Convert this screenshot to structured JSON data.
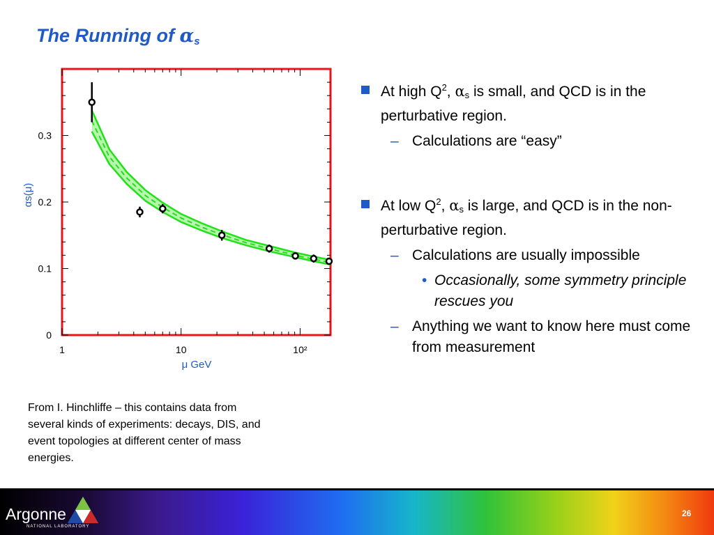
{
  "slide": {
    "title_prefix": "The Running of ",
    "title_symbol": "α",
    "title_subscript": "s",
    "page_number": "26"
  },
  "bullets": {
    "b1": {
      "pre": "At high Q",
      "sup": "2",
      "mid": ", ",
      "sym": "α",
      "sub": "s",
      "post": " is small, and QCD is in the perturbative region."
    },
    "b1_sub1": "Calculations are “easy”",
    "b2": {
      "pre": "At low Q",
      "sup": "2",
      "mid": ", ",
      "sym": "α",
      "sub": "s",
      "post": " is large, and QCD is in the non-perturbative region."
    },
    "b2_sub1": "Calculations are usually impossible",
    "b2_sub1_sub1": "Occasionally, some symmetry principle rescues you",
    "b2_sub2": "Anything we want to know here must come from measurement"
  },
  "caption": {
    "lines": [
      "From I. Hinchliffe – this contains data from",
      "several kinds of experiments: decays, DIS, and",
      "event topologies at different center of mass",
      "energies."
    ]
  },
  "footer": {
    "logo_text": "Argonne",
    "logo_subtext": "NATIONAL LABORATORY"
  },
  "chart_data": {
    "type": "scatter",
    "xlabel": "μ GeV",
    "ylabel": "αs(μ)",
    "xscale": "log",
    "xlim": [
      1,
      180
    ],
    "ylim": [
      0,
      0.4
    ],
    "x_ticks": [
      "1",
      "10",
      "10²"
    ],
    "y_ticks": [
      "0",
      "0.1",
      "0.2",
      "0.3"
    ],
    "frame_color": "#e8151b",
    "band_color": "#22e01a",
    "series": [
      {
        "type": "points_with_errors",
        "points": [
          {
            "x": 1.78,
            "y": 0.35,
            "err": 0.03
          },
          {
            "x": 4.5,
            "y": 0.185,
            "err": 0.008
          },
          {
            "x": 7.0,
            "y": 0.19,
            "err": 0.007
          },
          {
            "x": 22.0,
            "y": 0.15,
            "err": 0.008
          },
          {
            "x": 55.0,
            "y": 0.13,
            "err": 0.006
          },
          {
            "x": 91.2,
            "y": 0.119,
            "err": 0.003
          },
          {
            "x": 130.0,
            "y": 0.115,
            "err": 0.006
          },
          {
            "x": 175.0,
            "y": 0.111,
            "err": 0.004
          }
        ]
      },
      {
        "type": "band",
        "x": [
          1.78,
          2.5,
          3.5,
          5,
          7,
          10,
          15,
          22,
          35,
          55,
          91.2,
          130,
          180
        ],
        "center": [
          0.322,
          0.268,
          0.236,
          0.21,
          0.192,
          0.176,
          0.162,
          0.151,
          0.139,
          0.13,
          0.12,
          0.114,
          0.109
        ],
        "upper": [
          0.338,
          0.279,
          0.245,
          0.218,
          0.199,
          0.182,
          0.168,
          0.156,
          0.143,
          0.134,
          0.124,
          0.118,
          0.113
        ],
        "lower": [
          0.306,
          0.257,
          0.227,
          0.202,
          0.185,
          0.17,
          0.157,
          0.146,
          0.135,
          0.126,
          0.117,
          0.111,
          0.106
        ]
      }
    ]
  }
}
